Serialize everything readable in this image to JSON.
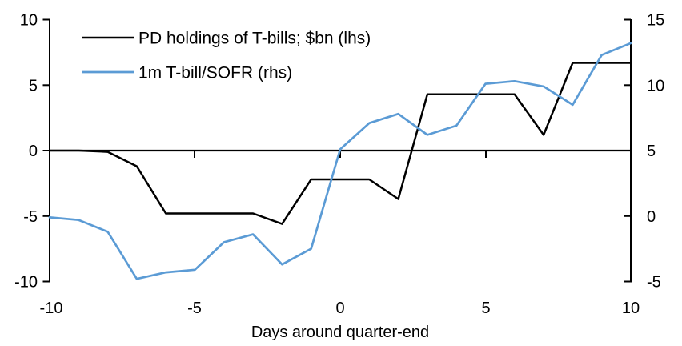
{
  "chart_data": {
    "type": "line",
    "title": "",
    "xlabel": "Days around quarter-end",
    "x": [
      -10,
      -9,
      -8,
      -7,
      -6,
      -5,
      -4,
      -3,
      -2,
      -1,
      0,
      1,
      2,
      3,
      4,
      5,
      6,
      7,
      8,
      9,
      10
    ],
    "x_ticks": [
      -10,
      -5,
      0,
      5,
      10
    ],
    "left_axis": {
      "min": -10,
      "max": 10,
      "ticks": [
        10,
        5,
        0,
        -5,
        -10
      ]
    },
    "right_axis": {
      "min": -5,
      "max": 15,
      "ticks": [
        15,
        10,
        5,
        0,
        -5
      ]
    },
    "grid": false,
    "legend_position": "top-left",
    "series": [
      {
        "name": "PD holdings of T-bills; $bn (lhs)",
        "axis": "left",
        "color": "#000000",
        "values": [
          0,
          0,
          -0.1,
          -1.2,
          -4.8,
          -4.8,
          -4.8,
          -4.8,
          -5.6,
          -2.2,
          -2.2,
          -2.2,
          -3.7,
          4.3,
          4.3,
          4.3,
          4.3,
          1.2,
          6.7,
          6.7,
          6.7
        ]
      },
      {
        "name": "1m T-bill/SOFR (rhs)",
        "axis": "right",
        "color": "#5B9BD5",
        "values": [
          -0.1,
          -0.3,
          -1.2,
          -4.8,
          -4.3,
          -4.1,
          -2.0,
          -1.4,
          -3.7,
          -2.5,
          5.1,
          7.1,
          7.8,
          6.2,
          6.9,
          10.1,
          10.3,
          9.9,
          8.5,
          12.3,
          13.2
        ]
      }
    ]
  }
}
